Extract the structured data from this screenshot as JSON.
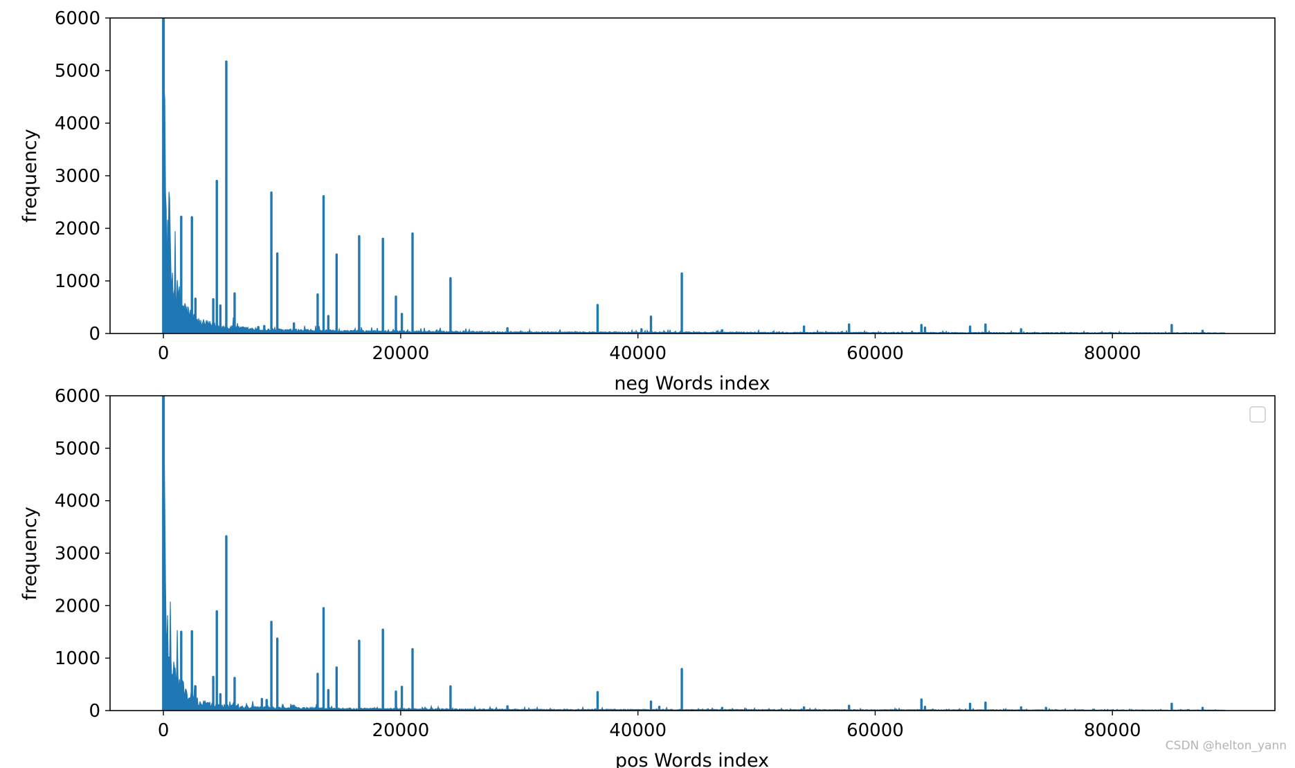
{
  "watermark": "CSDN @helton_yann",
  "colors": {
    "line": "#1f77b4",
    "axes": "#000000",
    "background": "#ffffff"
  },
  "chart_data": [
    {
      "type": "line",
      "xlabel": "neg Words index",
      "ylabel": "frequency",
      "xlim": [
        -4500,
        93700
      ],
      "ylim": [
        0,
        6000
      ],
      "xticks": [
        0,
        20000,
        40000,
        60000,
        80000
      ],
      "yticks": [
        0,
        1000,
        2000,
        3000,
        4000,
        5000,
        6000
      ],
      "legend": false,
      "x_max_index": 89500,
      "baseline_level": 15,
      "head_decay": [
        [
          0,
          6000
        ],
        [
          100,
          3400
        ],
        [
          200,
          2450
        ],
        [
          300,
          1600
        ],
        [
          500,
          1300
        ],
        [
          800,
          950
        ],
        [
          1200,
          700
        ],
        [
          2000,
          400
        ],
        [
          3000,
          200
        ],
        [
          5000,
          120
        ],
        [
          8000,
          70
        ],
        [
          15000,
          45
        ],
        [
          30000,
          25
        ],
        [
          89500,
          10
        ]
      ],
      "spikes": [
        [
          1500,
          2220
        ],
        [
          2400,
          2210
        ],
        [
          2700,
          660
        ],
        [
          4200,
          650
        ],
        [
          4500,
          2900
        ],
        [
          4800,
          530
        ],
        [
          5300,
          5170
        ],
        [
          6000,
          760
        ],
        [
          8000,
          120
        ],
        [
          8500,
          140
        ],
        [
          9100,
          2680
        ],
        [
          9600,
          1520
        ],
        [
          11000,
          190
        ],
        [
          13000,
          740
        ],
        [
          13500,
          2610
        ],
        [
          13900,
          330
        ],
        [
          14600,
          1500
        ],
        [
          16500,
          1850
        ],
        [
          18500,
          1800
        ],
        [
          19600,
          700
        ],
        [
          20100,
          370
        ],
        [
          21000,
          1900
        ],
        [
          24200,
          1050
        ],
        [
          29000,
          100
        ],
        [
          36600,
          540
        ],
        [
          40300,
          80
        ],
        [
          41100,
          320
        ],
        [
          43700,
          1140
        ],
        [
          47100,
          60
        ],
        [
          54000,
          130
        ],
        [
          57800,
          170
        ],
        [
          63900,
          160
        ],
        [
          64200,
          110
        ],
        [
          68000,
          130
        ],
        [
          69300,
          170
        ],
        [
          72300,
          80
        ],
        [
          85000,
          160
        ],
        [
          87600,
          50
        ]
      ]
    },
    {
      "type": "line",
      "xlabel": "pos Words index",
      "ylabel": "frequency",
      "xlim": [
        -4500,
        93700
      ],
      "ylim": [
        0,
        6000
      ],
      "xticks": [
        0,
        20000,
        40000,
        60000,
        80000
      ],
      "yticks": [
        0,
        1000,
        2000,
        3000,
        4000,
        5000,
        6000
      ],
      "legend": true,
      "x_max_index": 89500,
      "baseline_level": 12,
      "head_decay": [
        [
          0,
          6000
        ],
        [
          100,
          3300
        ],
        [
          200,
          2300
        ],
        [
          300,
          1650
        ],
        [
          500,
          1100
        ],
        [
          800,
          800
        ],
        [
          1200,
          550
        ],
        [
          2000,
          300
        ],
        [
          3000,
          150
        ],
        [
          5000,
          90
        ],
        [
          8000,
          55
        ],
        [
          15000,
          35
        ],
        [
          30000,
          20
        ],
        [
          89500,
          8
        ]
      ],
      "spikes": [
        [
          1500,
          1500
        ],
        [
          2400,
          1510
        ],
        [
          2700,
          460
        ],
        [
          4200,
          640
        ],
        [
          4500,
          1890
        ],
        [
          4800,
          310
        ],
        [
          5300,
          3320
        ],
        [
          6000,
          620
        ],
        [
          8300,
          220
        ],
        [
          8700,
          200
        ],
        [
          9100,
          1690
        ],
        [
          9600,
          1370
        ],
        [
          11000,
          90
        ],
        [
          13000,
          700
        ],
        [
          13500,
          1950
        ],
        [
          13900,
          390
        ],
        [
          14600,
          820
        ],
        [
          16500,
          1330
        ],
        [
          18500,
          1540
        ],
        [
          19600,
          360
        ],
        [
          20100,
          450
        ],
        [
          21000,
          1170
        ],
        [
          24200,
          460
        ],
        [
          29000,
          80
        ],
        [
          36600,
          350
        ],
        [
          41100,
          170
        ],
        [
          41800,
          70
        ],
        [
          43700,
          790
        ],
        [
          47100,
          50
        ],
        [
          54000,
          60
        ],
        [
          57800,
          90
        ],
        [
          63900,
          210
        ],
        [
          64200,
          70
        ],
        [
          68000,
          130
        ],
        [
          69300,
          150
        ],
        [
          72300,
          60
        ],
        [
          74400,
          50
        ],
        [
          85000,
          130
        ],
        [
          87600,
          50
        ]
      ]
    }
  ]
}
